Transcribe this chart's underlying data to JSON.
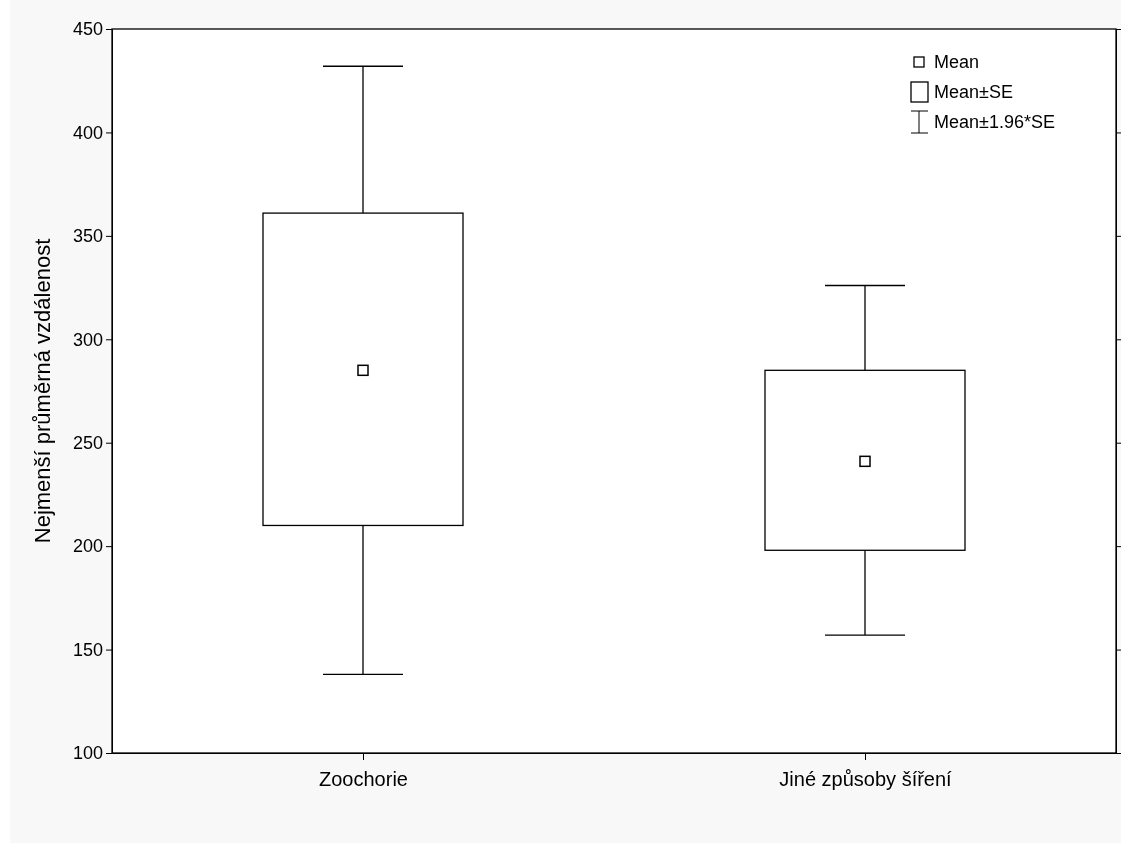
{
  "chart_data": {
    "type": "box",
    "ylabel": "Nejmenší průměrná vzdálenost",
    "categories": [
      "Zoochorie",
      "Jiné způsoby šíření"
    ],
    "boxes": [
      {
        "low": 138,
        "q1": 210,
        "q3": 361,
        "high": 432,
        "mean": 285
      },
      {
        "low": 157,
        "q1": 198,
        "q3": 285,
        "high": 326,
        "mean": 241
      }
    ],
    "ylim": [
      100,
      450
    ],
    "yticks": [
      100,
      150,
      200,
      250,
      300,
      350,
      400,
      450
    ],
    "grid": false,
    "annotations": [
      "Mean",
      "Mean±SE",
      "Mean±1.96*SE"
    ]
  }
}
